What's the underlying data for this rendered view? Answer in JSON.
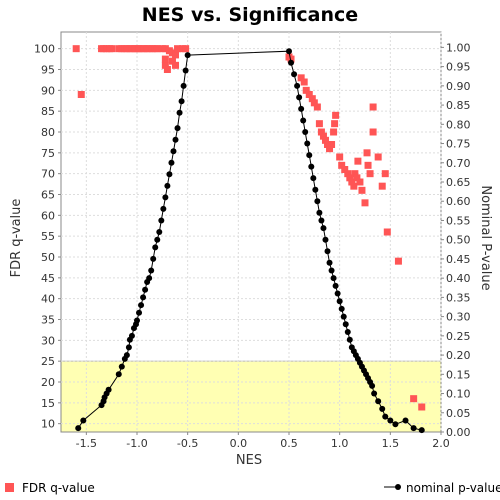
{
  "chart_data": {
    "type": "scatter",
    "title": "NES vs. Significance",
    "xlabel": "NES",
    "ylabel": "FDR q-value",
    "y2label": "Nominal P-value",
    "xlim": [
      -1.75,
      2.0
    ],
    "ylim": [
      8,
      104
    ],
    "y2lim": [
      0,
      1.04
    ],
    "xticks": [
      "-1.5",
      "-1.0",
      "-0.5",
      "0.0",
      "0.5",
      "1.0",
      "1.5",
      "2.0"
    ],
    "yticks": [
      "10",
      "15",
      "20",
      "25",
      "30",
      "35",
      "40",
      "45",
      "50",
      "55",
      "60",
      "65",
      "70",
      "75",
      "80",
      "85",
      "90",
      "95",
      "100"
    ],
    "y2ticks": [
      "0.00",
      "0.05",
      "0.10",
      "0.15",
      "0.20",
      "0.25",
      "0.30",
      "0.35",
      "0.40",
      "0.45",
      "0.50",
      "0.55",
      "0.60",
      "0.65",
      "0.70",
      "0.75",
      "0.80",
      "0.85",
      "0.90",
      "0.95",
      "1.00"
    ],
    "grid": true,
    "highlight_band": {
      "y_from": 8,
      "y_to": 25,
      "color": "#ffffb3"
    },
    "legend_position": "bottom",
    "series": [
      {
        "name": "FDR q-value",
        "axis": "left",
        "marker": "square",
        "color": "#ff5555",
        "points": [
          [
            -1.6,
            100
          ],
          [
            -1.55,
            89
          ],
          [
            -1.35,
            100
          ],
          [
            -1.33,
            100
          ],
          [
            -1.3,
            100
          ],
          [
            -1.27,
            100
          ],
          [
            -1.25,
            100
          ],
          [
            -1.18,
            100
          ],
          [
            -1.15,
            100
          ],
          [
            -1.12,
            100
          ],
          [
            -1.1,
            100
          ],
          [
            -1.07,
            100
          ],
          [
            -1.05,
            100
          ],
          [
            -1.02,
            100
          ],
          [
            -1.0,
            100
          ],
          [
            -0.98,
            100
          ],
          [
            -0.95,
            100
          ],
          [
            -0.93,
            100
          ],
          [
            -0.9,
            100
          ],
          [
            -0.88,
            100
          ],
          [
            -0.85,
            100
          ],
          [
            -0.82,
            100
          ],
          [
            -0.8,
            100
          ],
          [
            -0.75,
            100
          ],
          [
            -0.72,
            100
          ],
          [
            -0.68,
            99.5
          ],
          [
            -0.65,
            99
          ],
          [
            -0.62,
            98.5
          ],
          [
            -0.6,
            100
          ],
          [
            -0.55,
            100
          ],
          [
            -0.52,
            100
          ],
          [
            -0.72,
            96
          ],
          [
            -0.7,
            95
          ],
          [
            -0.72,
            97.5
          ],
          [
            -0.65,
            97
          ],
          [
            -0.62,
            96
          ],
          [
            0.5,
            98
          ],
          [
            0.52,
            97.5
          ],
          [
            0.62,
            93
          ],
          [
            0.65,
            92
          ],
          [
            0.67,
            90
          ],
          [
            0.7,
            89
          ],
          [
            0.73,
            88
          ],
          [
            0.75,
            87
          ],
          [
            0.78,
            86
          ],
          [
            0.8,
            82
          ],
          [
            0.82,
            80
          ],
          [
            0.84,
            79
          ],
          [
            0.86,
            78
          ],
          [
            0.88,
            77
          ],
          [
            0.9,
            76
          ],
          [
            0.92,
            77
          ],
          [
            0.94,
            80
          ],
          [
            0.95,
            82
          ],
          [
            0.96,
            84
          ],
          [
            1.0,
            74
          ],
          [
            1.02,
            72
          ],
          [
            1.05,
            71
          ],
          [
            1.08,
            70
          ],
          [
            1.1,
            69
          ],
          [
            1.12,
            68
          ],
          [
            1.14,
            67
          ],
          [
            1.15,
            70
          ],
          [
            1.17,
            69
          ],
          [
            1.18,
            73
          ],
          [
            1.2,
            68
          ],
          [
            1.22,
            66
          ],
          [
            1.25,
            63
          ],
          [
            1.27,
            75
          ],
          [
            1.28,
            72
          ],
          [
            1.3,
            70
          ],
          [
            1.33,
            86
          ],
          [
            1.33,
            80
          ],
          [
            1.38,
            74
          ],
          [
            1.42,
            67
          ],
          [
            1.45,
            70
          ],
          [
            1.47,
            56
          ],
          [
            1.58,
            49
          ],
          [
            1.73,
            16
          ],
          [
            1.81,
            14
          ]
        ]
      },
      {
        "name": "nominal p-value",
        "axis": "right",
        "marker": "circle",
        "color": "#000000",
        "points": [
          [
            -1.58,
            0.01
          ],
          [
            -1.53,
            0.03
          ],
          [
            -1.35,
            0.07
          ],
          [
            -1.33,
            0.08
          ],
          [
            -1.32,
            0.09
          ],
          [
            -1.3,
            0.1
          ],
          [
            -1.28,
            0.11
          ],
          [
            -1.18,
            0.15
          ],
          [
            -1.15,
            0.17
          ],
          [
            -1.12,
            0.19
          ],
          [
            -1.1,
            0.2
          ],
          [
            -1.08,
            0.22
          ],
          [
            -1.07,
            0.24
          ],
          [
            -1.05,
            0.25
          ],
          [
            -1.03,
            0.27
          ],
          [
            -1.01,
            0.28
          ],
          [
            -1.0,
            0.29
          ],
          [
            -0.98,
            0.31
          ],
          [
            -0.96,
            0.33
          ],
          [
            -0.94,
            0.35
          ],
          [
            -0.92,
            0.37
          ],
          [
            -0.9,
            0.39
          ],
          [
            -0.88,
            0.4
          ],
          [
            -0.86,
            0.42
          ],
          [
            -0.84,
            0.45
          ],
          [
            -0.82,
            0.48
          ],
          [
            -0.8,
            0.5
          ],
          [
            -0.78,
            0.52
          ],
          [
            -0.76,
            0.55
          ],
          [
            -0.74,
            0.58
          ],
          [
            -0.72,
            0.61
          ],
          [
            -0.7,
            0.64
          ],
          [
            -0.68,
            0.67
          ],
          [
            -0.66,
            0.7
          ],
          [
            -0.64,
            0.73
          ],
          [
            -0.62,
            0.76
          ],
          [
            -0.6,
            0.79
          ],
          [
            -0.58,
            0.83
          ],
          [
            -0.56,
            0.86
          ],
          [
            -0.54,
            0.9
          ],
          [
            -0.52,
            0.94
          ],
          [
            -0.5,
            0.98
          ],
          [
            0.5,
            0.99
          ],
          [
            0.52,
            0.96
          ],
          [
            0.55,
            0.93
          ],
          [
            0.58,
            0.9
          ],
          [
            0.6,
            0.87
          ],
          [
            0.62,
            0.84
          ],
          [
            0.64,
            0.81
          ],
          [
            0.66,
            0.78
          ],
          [
            0.68,
            0.75
          ],
          [
            0.7,
            0.72
          ],
          [
            0.72,
            0.69
          ],
          [
            0.74,
            0.66
          ],
          [
            0.76,
            0.63
          ],
          [
            0.78,
            0.6
          ],
          [
            0.8,
            0.57
          ],
          [
            0.82,
            0.55
          ],
          [
            0.84,
            0.53
          ],
          [
            0.86,
            0.5
          ],
          [
            0.88,
            0.47
          ],
          [
            0.9,
            0.44
          ],
          [
            0.92,
            0.42
          ],
          [
            0.94,
            0.4
          ],
          [
            0.96,
            0.38
          ],
          [
            0.98,
            0.36
          ],
          [
            1.0,
            0.34
          ],
          [
            1.02,
            0.32
          ],
          [
            1.04,
            0.3
          ],
          [
            1.06,
            0.28
          ],
          [
            1.08,
            0.26
          ],
          [
            1.1,
            0.24
          ],
          [
            1.12,
            0.22
          ],
          [
            1.14,
            0.21
          ],
          [
            1.16,
            0.2
          ],
          [
            1.18,
            0.19
          ],
          [
            1.2,
            0.18
          ],
          [
            1.22,
            0.17
          ],
          [
            1.24,
            0.16
          ],
          [
            1.26,
            0.15
          ],
          [
            1.28,
            0.14
          ],
          [
            1.3,
            0.13
          ],
          [
            1.32,
            0.12
          ],
          [
            1.34,
            0.1
          ],
          [
            1.38,
            0.08
          ],
          [
            1.42,
            0.06
          ],
          [
            1.45,
            0.04
          ],
          [
            1.5,
            0.03
          ],
          [
            1.55,
            0.02
          ],
          [
            1.65,
            0.03
          ],
          [
            1.73,
            0.01
          ],
          [
            1.81,
            0.005
          ]
        ]
      }
    ]
  }
}
